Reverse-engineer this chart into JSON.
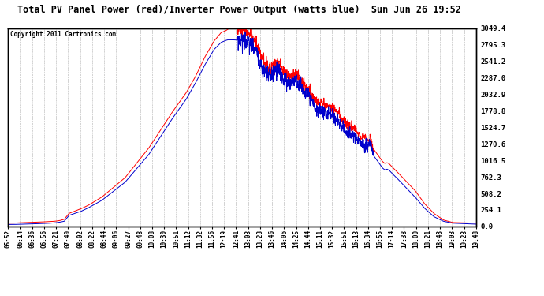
{
  "title": "Total PV Panel Power (red)/Inverter Power Output (watts blue)  Sun Jun 26 19:52",
  "copyright": "Copyright 2011 Cartronics.com",
  "ylabel_right_ticks": [
    0.0,
    254.1,
    508.2,
    762.3,
    1016.5,
    1270.6,
    1524.7,
    1778.8,
    2032.9,
    2287.0,
    2541.2,
    2795.3,
    3049.4
  ],
  "ylim": [
    0,
    3049.4
  ],
  "x_tick_labels": [
    "05:52",
    "06:14",
    "06:36",
    "06:56",
    "07:21",
    "07:40",
    "08:02",
    "08:22",
    "08:44",
    "09:06",
    "09:27",
    "09:48",
    "10:08",
    "10:30",
    "10:51",
    "11:12",
    "11:32",
    "11:56",
    "12:19",
    "12:41",
    "13:03",
    "13:23",
    "13:46",
    "14:06",
    "14:25",
    "14:44",
    "15:11",
    "15:32",
    "15:51",
    "16:13",
    "16:34",
    "16:55",
    "17:14",
    "17:38",
    "18:00",
    "18:21",
    "18:43",
    "19:03",
    "19:23",
    "19:48"
  ],
  "bg_color": "#ffffff",
  "grid_color": "#b0b0b0",
  "red_line_color": "#ff0000",
  "blue_line_color": "#0000cc",
  "title_color": "#000000",
  "font_family": "monospace",
  "red_key_t": [
    0.0,
    0.01,
    0.02,
    0.04,
    0.055,
    0.075,
    0.09,
    0.1,
    0.11,
    0.12,
    0.13,
    0.155,
    0.17,
    0.2,
    0.25,
    0.3,
    0.35,
    0.38,
    0.4,
    0.42,
    0.44,
    0.455,
    0.465,
    0.47,
    0.48,
    0.49,
    0.5,
    0.505,
    0.51,
    0.515,
    0.52,
    0.525,
    0.53,
    0.535,
    0.54,
    0.545,
    0.55,
    0.56,
    0.57,
    0.575,
    0.58,
    0.585,
    0.59,
    0.6,
    0.61,
    0.62,
    0.625,
    0.63,
    0.635,
    0.64,
    0.645,
    0.65,
    0.66,
    0.67,
    0.68,
    0.69,
    0.7,
    0.71,
    0.72,
    0.73,
    0.74,
    0.75,
    0.76,
    0.77,
    0.775,
    0.78,
    0.785,
    0.79,
    0.795,
    0.8,
    0.805,
    0.81,
    0.815,
    0.82,
    0.83,
    0.85,
    0.87,
    0.89,
    0.91,
    0.93,
    0.95,
    1.0
  ],
  "red_key_y": [
    50,
    50,
    55,
    60,
    65,
    70,
    75,
    80,
    90,
    110,
    200,
    270,
    320,
    450,
    750,
    1200,
    1750,
    2050,
    2300,
    2600,
    2850,
    2980,
    3010,
    3035,
    3049,
    3040,
    3020,
    3000,
    2980,
    2960,
    2900,
    2860,
    2820,
    2750,
    2650,
    2550,
    2500,
    2400,
    2500,
    2550,
    2480,
    2420,
    2380,
    2300,
    2350,
    2300,
    2280,
    2200,
    2150,
    2100,
    2050,
    2000,
    1900,
    1900,
    1850,
    1850,
    1780,
    1700,
    1600,
    1550,
    1500,
    1430,
    1380,
    1330,
    1350,
    1200,
    1150,
    1100,
    1050,
    1000,
    970,
    980,
    960,
    920,
    850,
    700,
    550,
    350,
    200,
    100,
    60,
    50
  ],
  "blue_key_t": [
    0.0,
    0.01,
    0.02,
    0.04,
    0.055,
    0.075,
    0.09,
    0.1,
    0.11,
    0.12,
    0.13,
    0.155,
    0.17,
    0.2,
    0.25,
    0.3,
    0.35,
    0.38,
    0.4,
    0.42,
    0.44,
    0.455,
    0.465,
    0.47,
    0.48,
    0.49,
    0.5,
    0.505,
    0.51,
    0.515,
    0.52,
    0.525,
    0.53,
    0.535,
    0.54,
    0.545,
    0.55,
    0.56,
    0.57,
    0.575,
    0.58,
    0.585,
    0.59,
    0.6,
    0.61,
    0.62,
    0.625,
    0.63,
    0.635,
    0.64,
    0.645,
    0.65,
    0.66,
    0.67,
    0.68,
    0.69,
    0.7,
    0.71,
    0.72,
    0.73,
    0.74,
    0.75,
    0.76,
    0.77,
    0.775,
    0.78,
    0.785,
    0.79,
    0.795,
    0.8,
    0.805,
    0.81,
    0.815,
    0.82,
    0.83,
    0.85,
    0.87,
    0.89,
    0.91,
    0.93,
    0.95,
    1.0
  ],
  "blue_key_y": [
    30,
    30,
    32,
    35,
    40,
    45,
    50,
    55,
    65,
    80,
    170,
    230,
    280,
    400,
    680,
    1100,
    1650,
    1950,
    2200,
    2480,
    2720,
    2830,
    2860,
    2870,
    2870,
    2865,
    2860,
    2855,
    2840,
    2820,
    2780,
    2750,
    2700,
    2600,
    2500,
    2400,
    2380,
    2300,
    2380,
    2420,
    2360,
    2300,
    2270,
    2200,
    2240,
    2200,
    2180,
    2100,
    2050,
    2000,
    1960,
    1900,
    1780,
    1780,
    1730,
    1720,
    1660,
    1580,
    1480,
    1430,
    1380,
    1310,
    1260,
    1240,
    1280,
    1100,
    1050,
    1000,
    950,
    900,
    870,
    880,
    860,
    820,
    750,
    600,
    450,
    280,
    150,
    80,
    50,
    35
  ]
}
